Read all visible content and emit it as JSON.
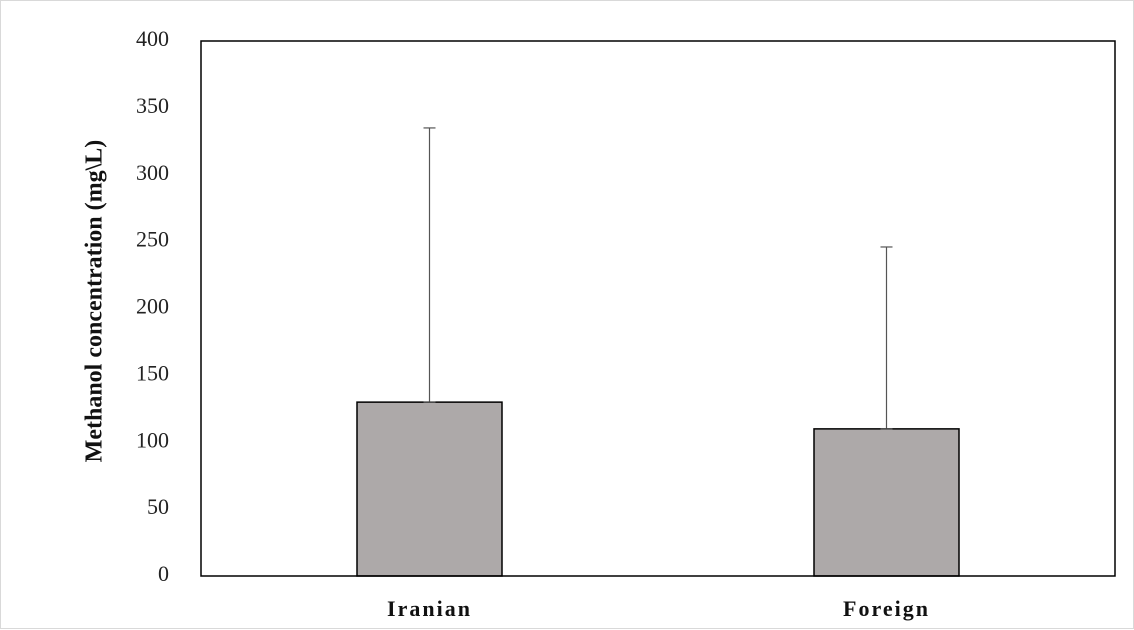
{
  "chart_data": {
    "type": "bar",
    "categories": [
      "Iranian",
      "Foreign"
    ],
    "values": [
      130,
      110
    ],
    "error_upper": [
      335,
      246
    ],
    "ylabel": "Methanol concentration (mg\\L)",
    "xlabel": "",
    "ylim": [
      0,
      400
    ],
    "yticks": [
      0,
      50,
      100,
      150,
      200,
      250,
      300,
      350,
      400
    ],
    "grid": false,
    "legend": "none",
    "bar_color": "#ada9a9",
    "bar_edge_color": "#000000"
  }
}
